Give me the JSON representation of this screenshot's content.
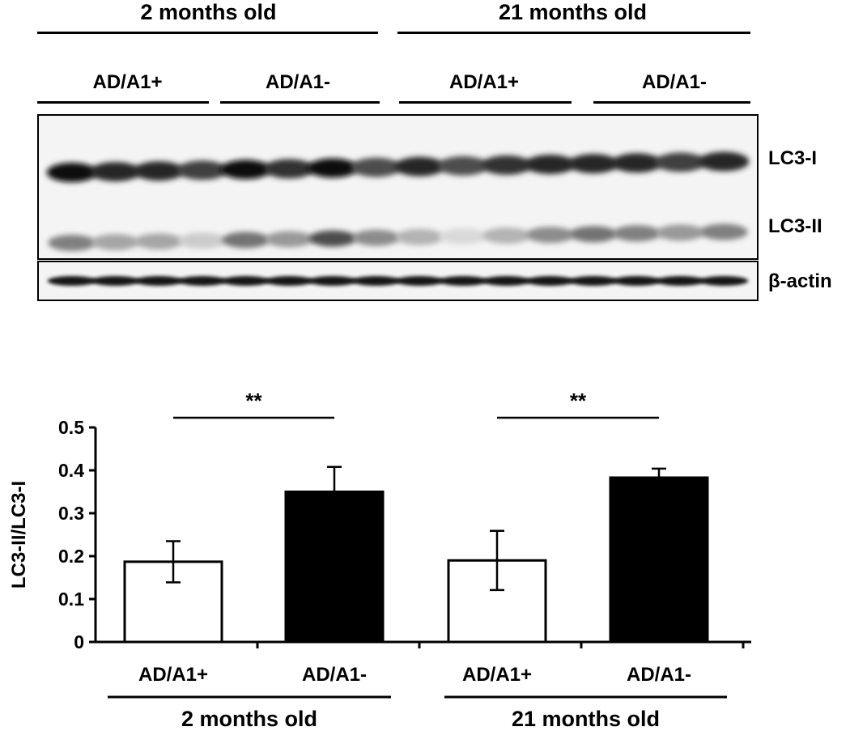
{
  "blot": {
    "age_headers": [
      "2 months old",
      "21 months old"
    ],
    "group_headers": [
      "AD/A1+",
      "AD/A1-",
      "AD/A1+",
      "AD/A1-"
    ],
    "band_labels": {
      "lc3_i": "LC3-I",
      "lc3_ii": "LC3-II",
      "beta_actin": "β-actin"
    },
    "lanes": 16,
    "lc3_i_intensity": [
      0.95,
      0.85,
      0.85,
      0.75,
      0.95,
      0.8,
      0.95,
      0.7,
      0.85,
      0.7,
      0.8,
      0.85,
      0.85,
      0.85,
      0.75,
      0.85
    ],
    "lc3_ii_intensity": [
      0.5,
      0.35,
      0.35,
      0.2,
      0.55,
      0.4,
      0.7,
      0.45,
      0.3,
      0.15,
      0.3,
      0.45,
      0.55,
      0.5,
      0.4,
      0.5
    ]
  },
  "chart_data": {
    "type": "bar",
    "ylabel": "LC3-II/LC3-I",
    "ylim": [
      0,
      0.5
    ],
    "yticks": [
      "0",
      "0.1",
      "0.2",
      "0.3",
      "0.4",
      "0.5"
    ],
    "categories": [
      "AD/A1+",
      "AD/A1-",
      "AD/A1+",
      "AD/A1-"
    ],
    "groups": [
      "2 months old",
      "21 months old"
    ],
    "values": [
      0.187,
      0.35,
      0.19,
      0.383
    ],
    "errors": [
      0.048,
      0.058,
      0.069,
      0.021
    ],
    "bar_colors": [
      "#ffffff",
      "#000000",
      "#ffffff",
      "#000000"
    ],
    "significance": [
      "**",
      "**"
    ]
  }
}
